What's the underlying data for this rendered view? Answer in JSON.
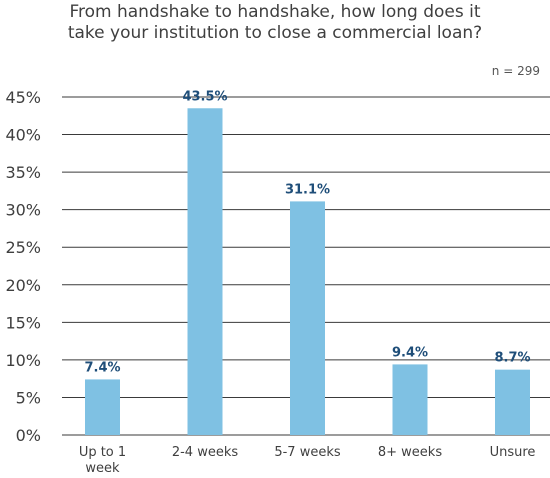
{
  "title_lines": [
    "From handshake to handshake, how long does it",
    "take your institution to close a commercial loan?"
  ],
  "n_label": "n = 299",
  "colors": {
    "bar": "#7fc1e3",
    "data_label": "#1f4e79",
    "gridline": "#3a3a3a"
  },
  "chart_data": {
    "type": "bar",
    "title": "From handshake to handshake, how long does it take your institution to close a commercial loan?",
    "categories": [
      [
        "Up to 1",
        "week"
      ],
      [
        "2-4 weeks"
      ],
      [
        "5-7 weeks"
      ],
      [
        "8+ weeks"
      ],
      [
        "Unsure"
      ]
    ],
    "values": [
      7.4,
      43.5,
      31.1,
      9.4,
      8.7
    ],
    "data_labels": [
      "7.4%",
      "43.5%",
      "31.1%",
      "9.4%",
      "8.7%"
    ],
    "ylim": [
      0,
      45
    ],
    "yticks": [
      0,
      5,
      10,
      15,
      20,
      25,
      30,
      35,
      40,
      45
    ],
    "ytick_labels": [
      "0%",
      "5%",
      "10%",
      "15%",
      "20%",
      "25%",
      "30%",
      "35%",
      "40%",
      "45%"
    ],
    "grid": true,
    "legend": "none"
  }
}
